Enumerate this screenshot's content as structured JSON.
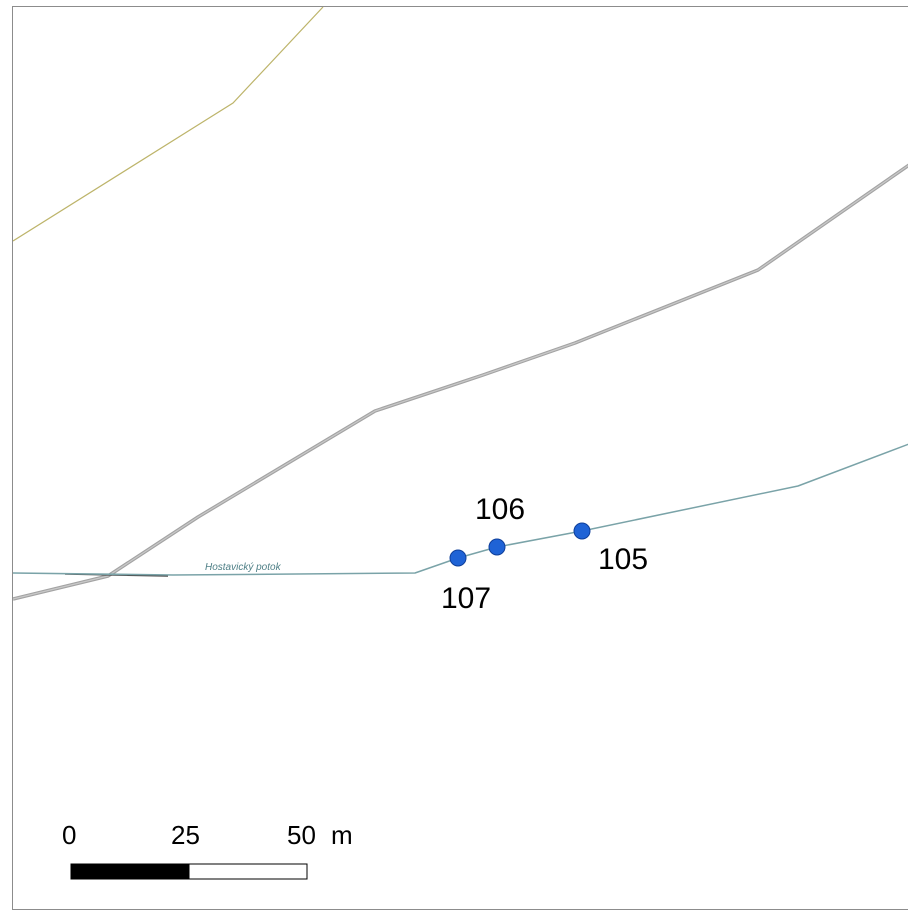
{
  "map": {
    "stream_name": "Hostavický potok",
    "stream_color": "#7aa3a8",
    "road_color": "#9e9e9e",
    "boundary_color": "#bdb46a",
    "point_color": "#1f63d6",
    "points": [
      {
        "label": "105"
      },
      {
        "label": "106"
      },
      {
        "label": "107"
      }
    ]
  },
  "scale_bar": {
    "ticks": [
      "0",
      "25",
      "50"
    ],
    "unit": "m"
  }
}
